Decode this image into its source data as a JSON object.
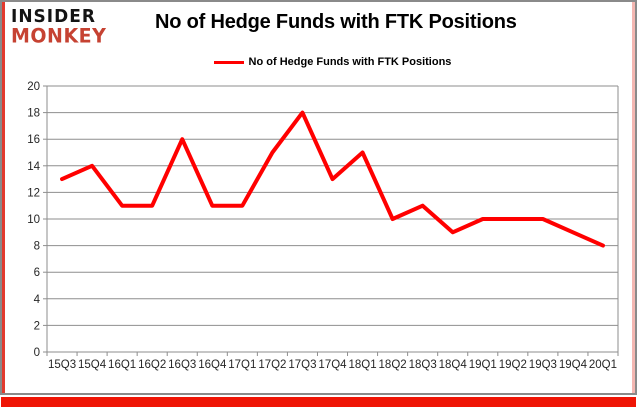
{
  "logo": {
    "line1": "INSIDER",
    "line2": "MONKEY"
  },
  "header": {
    "title": "No of Hedge Funds with FTK Positions"
  },
  "legend": {
    "label": "No of Hedge Funds with FTK Positions"
  },
  "colors": {
    "line": "#ff0000",
    "logo_red": "#c64232",
    "grid": "#8e8e8e",
    "frame_gray": "#8a8a8a",
    "accent_left": "#e23a2e",
    "accent_right": "#f4b7b2",
    "accent_bottom": "#ef1505",
    "axis_text": "#262626"
  },
  "chart_data": {
    "type": "line",
    "title": "No of Hedge Funds with FTK Positions",
    "categories": [
      "15Q3",
      "15Q4",
      "16Q1",
      "16Q2",
      "16Q3",
      "16Q4",
      "17Q1",
      "17Q2",
      "17Q3",
      "17Q4",
      "18Q1",
      "18Q2",
      "18Q3",
      "18Q4",
      "19Q1",
      "19Q2",
      "19Q3",
      "19Q4",
      "20Q1"
    ],
    "series": [
      {
        "name": "No of Hedge Funds with FTK Positions",
        "color": "#ff0000",
        "values": [
          13,
          14,
          11,
          11,
          16,
          11,
          11,
          15,
          18,
          13,
          15,
          10,
          11,
          9,
          10,
          10,
          10,
          9,
          8
        ]
      }
    ],
    "xlabel": "",
    "ylabel": "",
    "ylim": [
      0,
      20
    ],
    "ytick_step": 2,
    "grid": "horizontal",
    "legend_position": "top"
  }
}
